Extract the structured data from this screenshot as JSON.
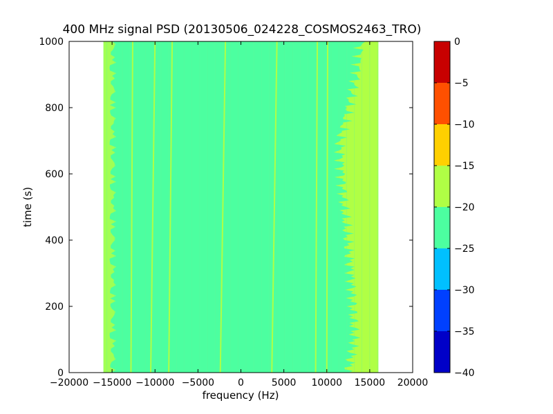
{
  "chart_data": {
    "type": "heatmap",
    "title": "400 MHz signal PSD (20130506_024228_COSMOS2463_TRO)",
    "xlabel": "frequency (Hz)",
    "ylabel": "time (s)",
    "xlim": [
      -20000,
      20000
    ],
    "ylim": [
      0,
      1000
    ],
    "x_ticks": [
      -20000,
      -15000,
      -10000,
      -5000,
      0,
      5000,
      10000,
      15000,
      20000
    ],
    "y_ticks": [
      0,
      200,
      400,
      600,
      800,
      1000
    ],
    "data_extent": {
      "x": [
        -16000,
        16000
      ],
      "y": [
        0,
        1000
      ]
    },
    "background_level_db": [
      -25,
      -20
    ],
    "lines": [
      {
        "name": "",
        "x_start": -12800,
        "x_end": -12600,
        "level_db": [
          -20,
          -15
        ]
      },
      {
        "name": "",
        "x_start": -10500,
        "x_end": -10000,
        "level_db": [
          -20,
          -15
        ]
      },
      {
        "name": "",
        "x_start": -8400,
        "x_end": -8000,
        "level_db": [
          -20,
          -15
        ]
      },
      {
        "name": "",
        "x_start": -2400,
        "x_end": -1800,
        "level_db": [
          -20,
          -15
        ]
      },
      {
        "name": "",
        "x_start": 3600,
        "x_end": 4200,
        "level_db": [
          -20,
          -15
        ]
      },
      {
        "name": "",
        "x_start": 8700,
        "x_end": 8900,
        "level_db": [
          -20,
          -15
        ]
      },
      {
        "name": "",
        "x_start": 10000,
        "x_end": 10100,
        "level_db": [
          -20,
          -15
        ]
      }
    ],
    "edge_noise": {
      "left_x": -16000,
      "right_x": 16000,
      "right_width_by_time": [
        {
          "t": 0,
          "x_from": 12500
        },
        {
          "t": 100,
          "x_from": 13200
        },
        {
          "t": 300,
          "x_from": 12800
        },
        {
          "t": 500,
          "x_from": 12000
        },
        {
          "t": 700,
          "x_from": 11500
        },
        {
          "t": 900,
          "x_from": 13500
        },
        {
          "t": 1000,
          "x_from": 14000
        }
      ]
    },
    "colorbar": {
      "levels": [
        -40,
        -35,
        -30,
        -25,
        -20,
        -15,
        -10,
        -5,
        0
      ],
      "colors": [
        "#0000c8",
        "#0040ff",
        "#00c0ff",
        "#4cffa0",
        "#b0ff45",
        "#ffd000",
        "#ff5000",
        "#c80000"
      ],
      "tick_labels": [
        "-40",
        "-35",
        "-30",
        "-25",
        "-20",
        "-15",
        "-10",
        "-5",
        "0"
      ]
    },
    "grid": false
  }
}
